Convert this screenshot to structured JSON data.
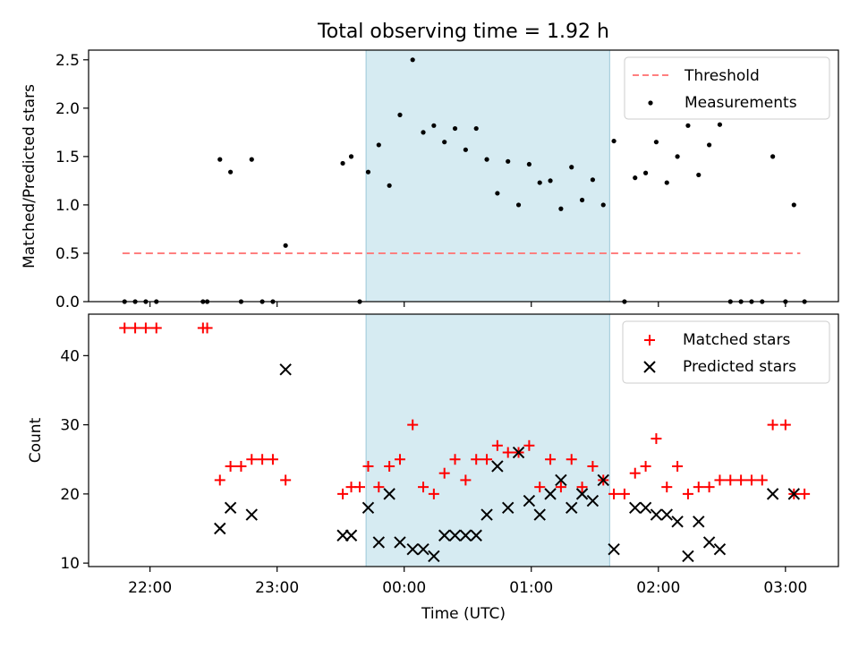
{
  "title": "Total observing time = 1.92 h",
  "xlabel": "Time (UTC)",
  "x_ticks": [
    "22:00",
    "23:00",
    "00:00",
    "01:00",
    "02:00",
    "03:00"
  ],
  "colors": {
    "threshold": "#ff7f7f",
    "highlight": "#add8e6",
    "matched": "#ff0000",
    "predicted": "#000000",
    "measurement": "#000000"
  },
  "chart_data": [
    {
      "type": "scatter",
      "ylabel": "Matched/Predicted stars",
      "ylim": [
        0,
        2.6
      ],
      "y_ticks": [
        "0.0",
        "0.5",
        "1.0",
        "1.5",
        "2.0",
        "2.5"
      ],
      "xlim": [
        "21:31",
        "03:25"
      ],
      "highlight_span": [
        "23:42",
        "01:37"
      ],
      "legend": {
        "position": "top-right",
        "entries": [
          "Threshold",
          "Measurements"
        ]
      },
      "threshold": {
        "name": "Threshold",
        "value": 0.5,
        "x": [
          "21:47",
          "03:07"
        ]
      },
      "series": [
        {
          "name": "Measurements",
          "points": [
            [
              "21:48",
              0
            ],
            [
              "21:53",
              0
            ],
            [
              "21:58",
              0
            ],
            [
              "22:03",
              0
            ],
            [
              "22:25",
              0
            ],
            [
              "22:27",
              0
            ],
            [
              "22:33",
              1.47
            ],
            [
              "22:38",
              1.34
            ],
            [
              "22:43",
              0
            ],
            [
              "22:48",
              1.47
            ],
            [
              "22:53",
              0
            ],
            [
              "22:58",
              0
            ],
            [
              "23:04",
              0.58
            ],
            [
              "23:31",
              1.43
            ],
            [
              "23:35",
              1.5
            ],
            [
              "23:39",
              0
            ],
            [
              "23:43",
              1.34
            ],
            [
              "23:48",
              1.62
            ],
            [
              "23:53",
              1.2
            ],
            [
              "23:58",
              1.93
            ],
            [
              "00:04",
              2.5
            ],
            [
              "00:09",
              1.75
            ],
            [
              "00:14",
              1.82
            ],
            [
              "00:19",
              1.65
            ],
            [
              "00:24",
              1.79
            ],
            [
              "00:29",
              1.57
            ],
            [
              "00:34",
              1.79
            ],
            [
              "00:39",
              1.47
            ],
            [
              "00:44",
              1.12
            ],
            [
              "00:49",
              1.45
            ],
            [
              "00:54",
              1.0
            ],
            [
              "00:59",
              1.42
            ],
            [
              "01:04",
              1.23
            ],
            [
              "01:09",
              1.25
            ],
            [
              "01:14",
              0.96
            ],
            [
              "01:19",
              1.39
            ],
            [
              "01:24",
              1.05
            ],
            [
              "01:29",
              1.26
            ],
            [
              "01:34",
              1.0
            ],
            [
              "01:39",
              1.66
            ],
            [
              "01:44",
              0
            ],
            [
              "01:49",
              1.28
            ],
            [
              "01:54",
              1.33
            ],
            [
              "01:59",
              1.65
            ],
            [
              "02:04",
              1.23
            ],
            [
              "02:09",
              1.5
            ],
            [
              "02:14",
              1.82
            ],
            [
              "02:19",
              1.31
            ],
            [
              "02:24",
              1.62
            ],
            [
              "02:29",
              1.83
            ],
            [
              "02:34",
              0
            ],
            [
              "02:39",
              0
            ],
            [
              "02:44",
              0
            ],
            [
              "02:49",
              0
            ],
            [
              "02:54",
              1.5
            ],
            [
              "03:00",
              0
            ],
            [
              "03:04",
              1.0
            ],
            [
              "03:09",
              0
            ]
          ]
        }
      ]
    },
    {
      "type": "scatter",
      "ylabel": "Count",
      "ylim": [
        9.5,
        46
      ],
      "y_ticks": [
        "10",
        "20",
        "30",
        "40"
      ],
      "xlim": [
        "21:31",
        "03:25"
      ],
      "highlight_span": [
        "23:42",
        "01:37"
      ],
      "legend": {
        "position": "top-right",
        "entries": [
          "Matched stars",
          "Predicted stars"
        ]
      },
      "series": [
        {
          "name": "Matched stars",
          "marker": "+",
          "points": [
            [
              "21:48",
              44
            ],
            [
              "21:53",
              44
            ],
            [
              "21:58",
              44
            ],
            [
              "22:03",
              44
            ],
            [
              "22:25",
              44
            ],
            [
              "22:27",
              44
            ],
            [
              "22:33",
              22
            ],
            [
              "22:38",
              24
            ],
            [
              "22:43",
              24
            ],
            [
              "22:48",
              25
            ],
            [
              "22:53",
              25
            ],
            [
              "22:58",
              25
            ],
            [
              "23:04",
              22
            ],
            [
              "23:31",
              20
            ],
            [
              "23:35",
              21
            ],
            [
              "23:39",
              21
            ],
            [
              "23:43",
              24
            ],
            [
              "23:48",
              21
            ],
            [
              "23:53",
              24
            ],
            [
              "23:58",
              25
            ],
            [
              "00:04",
              30
            ],
            [
              "00:09",
              21
            ],
            [
              "00:14",
              20
            ],
            [
              "00:19",
              23
            ],
            [
              "00:24",
              25
            ],
            [
              "00:29",
              22
            ],
            [
              "00:34",
              25
            ],
            [
              "00:39",
              25
            ],
            [
              "00:44",
              27
            ],
            [
              "00:49",
              26
            ],
            [
              "00:54",
              26
            ],
            [
              "00:59",
              27
            ],
            [
              "01:04",
              21
            ],
            [
              "01:09",
              25
            ],
            [
              "01:14",
              21
            ],
            [
              "01:19",
              25
            ],
            [
              "01:24",
              21
            ],
            [
              "01:29",
              24
            ],
            [
              "01:34",
              22
            ],
            [
              "01:39",
              20
            ],
            [
              "01:44",
              20
            ],
            [
              "01:49",
              23
            ],
            [
              "01:54",
              24
            ],
            [
              "01:59",
              28
            ],
            [
              "02:04",
              21
            ],
            [
              "02:09",
              24
            ],
            [
              "02:14",
              20
            ],
            [
              "02:19",
              21
            ],
            [
              "02:24",
              21
            ],
            [
              "02:29",
              22
            ],
            [
              "02:34",
              22
            ],
            [
              "02:39",
              22
            ],
            [
              "02:44",
              22
            ],
            [
              "02:49",
              22
            ],
            [
              "02:54",
              30
            ],
            [
              "03:00",
              30
            ],
            [
              "03:04",
              20
            ],
            [
              "03:09",
              20
            ]
          ]
        },
        {
          "name": "Predicted stars",
          "marker": "x",
          "points": [
            [
              "22:33",
              15
            ],
            [
              "22:38",
              18
            ],
            [
              "22:48",
              17
            ],
            [
              "23:04",
              38
            ],
            [
              "23:31",
              14
            ],
            [
              "23:35",
              14
            ],
            [
              "23:43",
              18
            ],
            [
              "23:48",
              13
            ],
            [
              "23:53",
              20
            ],
            [
              "23:58",
              13
            ],
            [
              "00:04",
              12
            ],
            [
              "00:09",
              12
            ],
            [
              "00:14",
              11
            ],
            [
              "00:19",
              14
            ],
            [
              "00:24",
              14
            ],
            [
              "00:29",
              14
            ],
            [
              "00:34",
              14
            ],
            [
              "00:39",
              17
            ],
            [
              "00:44",
              24
            ],
            [
              "00:49",
              18
            ],
            [
              "00:54",
              26
            ],
            [
              "00:59",
              19
            ],
            [
              "01:04",
              17
            ],
            [
              "01:09",
              20
            ],
            [
              "01:14",
              22
            ],
            [
              "01:19",
              18
            ],
            [
              "01:24",
              20
            ],
            [
              "01:29",
              19
            ],
            [
              "01:34",
              22
            ],
            [
              "01:39",
              12
            ],
            [
              "01:49",
              18
            ],
            [
              "01:54",
              18
            ],
            [
              "01:59",
              17
            ],
            [
              "02:04",
              17
            ],
            [
              "02:09",
              16
            ],
            [
              "02:14",
              11
            ],
            [
              "02:19",
              16
            ],
            [
              "02:24",
              13
            ],
            [
              "02:29",
              12
            ],
            [
              "02:54",
              20
            ],
            [
              "03:04",
              20
            ]
          ]
        }
      ]
    }
  ]
}
